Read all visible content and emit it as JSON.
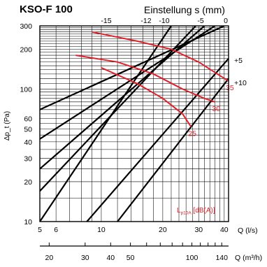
{
  "chart_data": {
    "type": "line",
    "title": "KSO-F 100",
    "subtitle": "Einstellung s (mm)",
    "ylabel": "Δp_t (Pa)",
    "xlabel_ls": "Q (l/s)",
    "xlabel_m3h": "Q (m³/h)",
    "xscale": "log",
    "yscale": "log",
    "xlim_ls": [
      5,
      42
    ],
    "ylim": [
      10,
      300
    ],
    "grid": true,
    "x_ticks_ls": [
      "5",
      "6",
      "10",
      "20",
      "30",
      "40"
    ],
    "x_ticks_m3h": [
      "20",
      "30",
      "40",
      "50",
      "100",
      "140"
    ],
    "y_ticks": [
      "10",
      "20",
      "30",
      "40",
      "50",
      "60",
      "100",
      "200",
      "300"
    ],
    "setting_lines": [
      {
        "label": "-15",
        "points": [
          [
            5,
            10
          ],
          [
            22,
            300
          ]
        ]
      },
      {
        "label": "-12",
        "points": [
          [
            5,
            17
          ],
          [
            29,
            300
          ]
        ]
      },
      {
        "label": "-10",
        "points": [
          [
            5,
            25
          ],
          [
            32,
            300
          ]
        ]
      },
      {
        "label": "-5",
        "points": [
          [
            5,
            42
          ],
          [
            36,
            300
          ]
        ]
      },
      {
        "label": "0",
        "points": [
          [
            5,
            70
          ],
          [
            40,
            300
          ]
        ]
      },
      {
        "label": "+5",
        "points": [
          [
            8.5,
            10
          ],
          [
            42,
            170
          ]
        ]
      },
      {
        "label": "+10",
        "points": [
          [
            12,
            10
          ],
          [
            42,
            120
          ]
        ]
      }
    ],
    "top_labels": [
      "-15",
      "-12",
      "-10",
      "-5",
      "0"
    ],
    "right_labels": [
      "+5",
      "+10"
    ],
    "noise_label": "L_p10A [dB(A)]",
    "noise_curves": [
      {
        "name": "35",
        "points": [
          [
            9,
            270
          ],
          [
            15,
            230
          ],
          [
            22,
            200
          ],
          [
            30,
            160
          ],
          [
            37,
            130
          ],
          [
            42,
            115
          ]
        ]
      },
      {
        "name": "30",
        "points": [
          [
            7.5,
            180
          ],
          [
            12,
            160
          ],
          [
            18,
            130
          ],
          [
            25,
            100
          ],
          [
            32,
            85
          ],
          [
            36,
            80
          ]
        ]
      },
      {
        "name": "25",
        "points": [
          [
            10,
            145
          ],
          [
            15,
            110
          ],
          [
            20,
            85
          ],
          [
            25,
            65
          ],
          [
            27.5,
            52
          ]
        ]
      }
    ],
    "colors": {
      "grid": "#000000",
      "setting": "#000000",
      "noise": "#e0202a"
    }
  }
}
